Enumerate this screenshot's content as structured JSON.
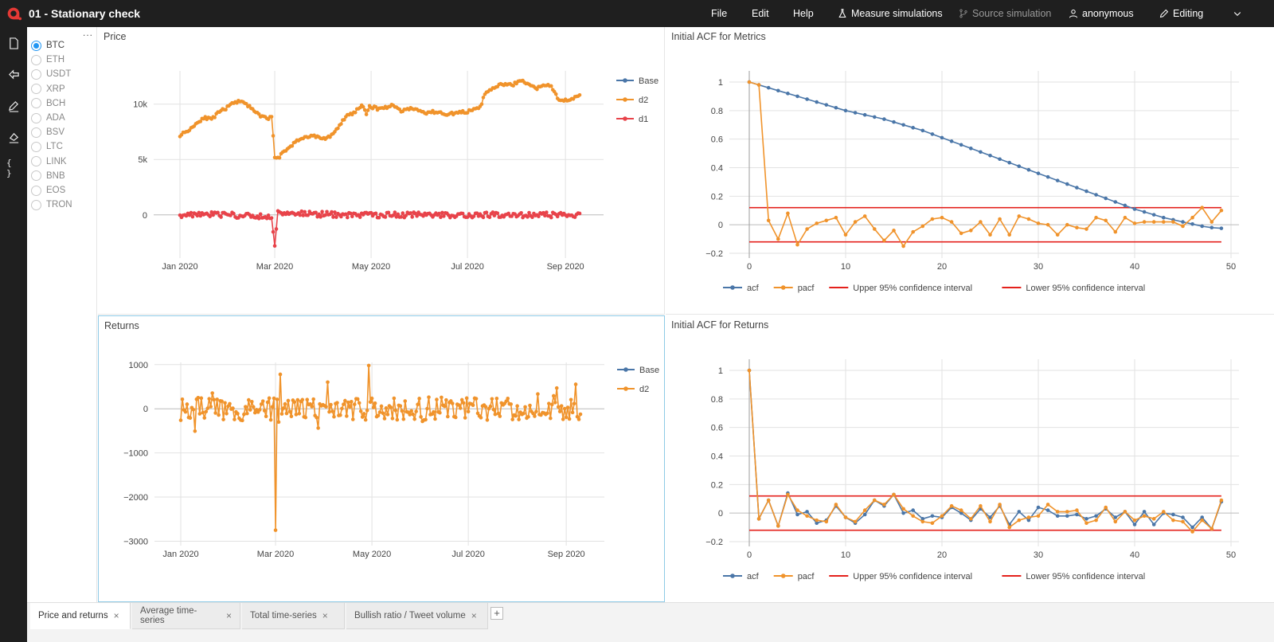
{
  "app": {
    "title": "01 - Stationary check",
    "menu": {
      "file": "File",
      "edit": "Edit",
      "help": "Help",
      "measure": "Measure simulations",
      "source": "Source simulation",
      "user": "anonymous",
      "mode": "Editing"
    }
  },
  "sidebar": {
    "icons": [
      "file-icon",
      "export-icon",
      "edit-icon",
      "paint-icon",
      "code-braces-icon"
    ],
    "code_label": "{ }"
  },
  "assets": {
    "more": "...",
    "selected": "BTC",
    "items": [
      "BTC",
      "ETH",
      "USDT",
      "XRP",
      "BCH",
      "ADA",
      "BSV",
      "LTC",
      "LINK",
      "BNB",
      "EOS",
      "TRON"
    ]
  },
  "panels": {
    "price_title": "Price",
    "acf_metrics_title": "Initial ACF for Metrics",
    "returns_title": "Returns",
    "acf_returns_title": "Initial ACF for Returns"
  },
  "tabs": [
    {
      "label": "Price and returns",
      "close": "×"
    },
    {
      "label": "Average time-series",
      "close": "×"
    },
    {
      "label": "Total time-series",
      "close": "×"
    },
    {
      "label": "Bullish ratio / Tweet volume",
      "close": "×"
    }
  ],
  "add_tab": "+",
  "colors": {
    "blue": "#4a76a8",
    "orange": "#f0932b",
    "red": "#e8434a",
    "conf": "#e4211c"
  },
  "chart_data": [
    {
      "id": "price",
      "type": "line",
      "x_ticks": [
        "Jan 2020",
        "Mar 2020",
        "May 2020",
        "Jul 2020",
        "Sep 2020"
      ],
      "y_ticks": [
        "0",
        "5k",
        "10k"
      ],
      "ylim": [
        -3900,
        13000
      ],
      "series": [
        {
          "name": "Base",
          "values": []
        },
        {
          "name": "d2",
          "anchors": [
            [
              0,
              7200
            ],
            [
              5,
              7600
            ],
            [
              10,
              8200
            ],
            [
              15,
              8800
            ],
            [
              20,
              8600
            ],
            [
              25,
              9300
            ],
            [
              30,
              9700
            ],
            [
              35,
              10200
            ],
            [
              40,
              10300
            ],
            [
              45,
              9600
            ],
            [
              50,
              9000
            ],
            [
              55,
              8700
            ],
            [
              58,
              8800
            ],
            [
              60,
              5300
            ],
            [
              63,
              5200
            ],
            [
              65,
              5600
            ],
            [
              70,
              6200
            ],
            [
              75,
              6800
            ],
            [
              80,
              7000
            ],
            [
              85,
              7200
            ],
            [
              90,
              6800
            ],
            [
              95,
              7100
            ],
            [
              100,
              7800
            ],
            [
              105,
              8900
            ],
            [
              110,
              9200
            ],
            [
              115,
              9900
            ],
            [
              118,
              9100
            ],
            [
              120,
              9800
            ],
            [
              125,
              9600
            ],
            [
              130,
              9700
            ],
            [
              135,
              9900
            ],
            [
              140,
              9400
            ],
            [
              145,
              9600
            ],
            [
              150,
              9500
            ],
            [
              155,
              9200
            ],
            [
              160,
              9300
            ],
            [
              165,
              9200
            ],
            [
              170,
              9100
            ],
            [
              175,
              9200
            ],
            [
              180,
              9300
            ],
            [
              185,
              9400
            ],
            [
              190,
              9700
            ],
            [
              193,
              10900
            ],
            [
              196,
              11200
            ],
            [
              200,
              11600
            ],
            [
              205,
              11800
            ],
            [
              210,
              11700
            ],
            [
              215,
              12100
            ],
            [
              220,
              11900
            ],
            [
              225,
              11400
            ],
            [
              230,
              11600
            ],
            [
              235,
              11700
            ],
            [
              238,
              10800
            ],
            [
              240,
              10400
            ],
            [
              245,
              10300
            ],
            [
              250,
              10600
            ],
            [
              253,
              10900
            ]
          ]
        },
        {
          "name": "d1",
          "anchors": [
            [
              0,
              0
            ],
            [
              20,
              100
            ],
            [
              40,
              -100
            ],
            [
              58,
              -200
            ],
            [
              60,
              -2800
            ],
            [
              62,
              200
            ],
            [
              100,
              0
            ],
            [
              150,
              0
            ],
            [
              200,
              0
            ],
            [
              253,
              0
            ]
          ]
        }
      ]
    },
    {
      "id": "acf_metrics",
      "type": "line",
      "x_ticks": [
        "0",
        "10",
        "20",
        "30",
        "40",
        "50"
      ],
      "y_ticks": [
        "−0.2",
        "0",
        "0.2",
        "0.4",
        "0.6",
        "0.8",
        "1"
      ],
      "ylim": [
        -0.2,
        1.0
      ],
      "series": [
        {
          "name": "acf",
          "values": [
            1,
            0.98,
            0.96,
            0.94,
            0.92,
            0.9,
            0.88,
            0.86,
            0.84,
            0.82,
            0.8,
            0.785,
            0.77,
            0.755,
            0.74,
            0.72,
            0.7,
            0.68,
            0.66,
            0.635,
            0.61,
            0.585,
            0.56,
            0.535,
            0.51,
            0.485,
            0.46,
            0.435,
            0.41,
            0.385,
            0.36,
            0.335,
            0.31,
            0.285,
            0.26,
            0.235,
            0.21,
            0.185,
            0.16,
            0.135,
            0.11,
            0.09,
            0.07,
            0.05,
            0.035,
            0.02,
            0.005,
            -0.01,
            -0.02,
            -0.025
          ]
        },
        {
          "name": "pacf",
          "values": [
            1,
            0.98,
            0.03,
            -0.1,
            0.08,
            -0.14,
            -0.03,
            0.01,
            0.03,
            0.05,
            -0.07,
            0.02,
            0.06,
            -0.03,
            -0.11,
            -0.04,
            -0.15,
            -0.05,
            -0.01,
            0.04,
            0.05,
            0.02,
            -0.06,
            -0.04,
            0.02,
            -0.07,
            0.04,
            -0.07,
            0.06,
            0.04,
            0.01,
            0.0,
            -0.07,
            0.0,
            -0.02,
            -0.03,
            0.05,
            0.03,
            -0.05,
            0.05,
            0.01,
            0.02,
            0.02,
            0.02,
            0.02,
            -0.01,
            0.05,
            0.12,
            0.02,
            0.1
          ]
        },
        {
          "name": "Upper 95% confidence interval",
          "values": [
            0.12,
            0.12
          ]
        },
        {
          "name": "Lower 95% confidence interval",
          "values": [
            -0.12,
            -0.12
          ]
        }
      ]
    },
    {
      "id": "returns",
      "type": "line",
      "x_ticks": [
        "Jan 2020",
        "Mar 2020",
        "May 2020",
        "Jul 2020",
        "Sep 2020"
      ],
      "y_ticks": [
        "−3000",
        "−2000",
        "−1000",
        "0",
        "1000"
      ],
      "ylim": [
        -3000,
        1000
      ],
      "series": [
        {
          "name": "Base",
          "values": []
        },
        {
          "name": "d2",
          "values": []
        }
      ]
    },
    {
      "id": "acf_returns",
      "type": "line",
      "x_ticks": [
        "0",
        "10",
        "20",
        "30",
        "40",
        "50"
      ],
      "y_ticks": [
        "−0.2",
        "0",
        "0.2",
        "0.4",
        "0.6",
        "0.8",
        "1"
      ],
      "ylim": [
        -0.2,
        1.0
      ],
      "series": [
        {
          "name": "acf",
          "values": [
            1,
            -0.04,
            0.09,
            -0.09,
            0.14,
            -0.01,
            0.01,
            -0.07,
            -0.05,
            0.05,
            -0.03,
            -0.07,
            -0.01,
            0.09,
            0.05,
            0.13,
            0.0,
            0.02,
            -0.04,
            -0.02,
            -0.03,
            0.04,
            0.0,
            -0.05,
            0.03,
            -0.03,
            0.05,
            -0.08,
            0.01,
            -0.05,
            0.04,
            0.02,
            -0.02,
            -0.02,
            -0.01,
            -0.04,
            -0.02,
            0.03,
            -0.03,
            0.01,
            -0.08,
            0.01,
            -0.08,
            0.0,
            -0.01,
            -0.03,
            -0.1,
            -0.03,
            -0.11,
            0.08
          ]
        },
        {
          "name": "pacf",
          "values": [
            1,
            -0.04,
            0.09,
            -0.09,
            0.13,
            0.02,
            -0.02,
            -0.05,
            -0.06,
            0.06,
            -0.03,
            -0.06,
            0.02,
            0.09,
            0.06,
            0.13,
            0.03,
            -0.02,
            -0.06,
            -0.07,
            -0.02,
            0.05,
            0.02,
            -0.04,
            0.05,
            -0.06,
            0.06,
            -0.1,
            -0.05,
            -0.03,
            -0.02,
            0.06,
            0.01,
            0.01,
            0.02,
            -0.07,
            -0.05,
            0.04,
            -0.06,
            0.01,
            -0.05,
            -0.02,
            -0.04,
            0.01,
            -0.05,
            -0.06,
            -0.13,
            -0.05,
            -0.11,
            0.09
          ]
        },
        {
          "name": "Upper 95% confidence interval",
          "values": [
            0.12,
            0.12
          ]
        },
        {
          "name": "Lower 95% confidence interval",
          "values": [
            -0.12,
            -0.12
          ]
        }
      ]
    }
  ]
}
